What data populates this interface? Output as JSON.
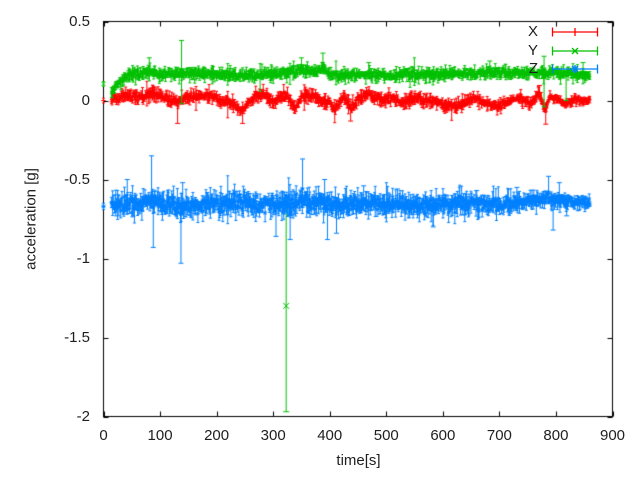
{
  "chart_data": {
    "type": "scatter",
    "subtype": "errorbars",
    "title": "",
    "xlabel": "time[s]",
    "ylabel": "acceleration [g]",
    "xlim": [
      0,
      900
    ],
    "ylim": [
      -2,
      0.5
    ],
    "xticks": {
      "values": [
        0,
        100,
        200,
        300,
        400,
        500,
        600,
        700,
        800,
        900
      ],
      "labels": [
        "0",
        "100",
        "200",
        "300",
        "400",
        "500",
        "600",
        "700",
        "800",
        "900"
      ]
    },
    "yticks": {
      "values": [
        0.5,
        0,
        -0.5,
        -1,
        -1.5,
        -2
      ],
      "labels": [
        "0.5",
        "0",
        "-0.5",
        "-1",
        "-1.5",
        "-2"
      ]
    },
    "grid": false,
    "legend_position": "top-right",
    "background_color": "#ffffff",
    "border_color": "#000000",
    "text_color": "#1f1f1f",
    "t_start": 14,
    "t_end": 860,
    "t_step": 1.1,
    "seed": 20,
    "series": [
      {
        "label": "X",
        "color": "#ff0000",
        "marker": "plus",
        "noise_sigma": 0.012,
        "err_base": 0.02,
        "taper": [
          [
            0,
            1
          ],
          [
            650,
            1
          ],
          [
            860,
            0.75
          ]
        ],
        "centerline": [
          [
            0,
            0
          ],
          [
            14,
            0.01
          ],
          [
            30,
            0.02
          ],
          [
            45,
            0.035
          ],
          [
            62,
            0.02
          ],
          [
            80,
            0.045
          ],
          [
            95,
            0.04
          ],
          [
            110,
            0.015
          ],
          [
            126,
            -0.005
          ],
          [
            131,
            -0.01
          ],
          [
            145,
            0.02
          ],
          [
            165,
            0.03
          ],
          [
            185,
            0.03
          ],
          [
            205,
            0.005
          ],
          [
            228,
            -0.025
          ],
          [
            245,
            -0.065
          ],
          [
            256,
            -0.01
          ],
          [
            272,
            0.035
          ],
          [
            286,
            0.045
          ],
          [
            299,
            -0.015
          ],
          [
            312,
            0.02
          ],
          [
            324,
            0.03
          ],
          [
            338,
            -0.05
          ],
          [
            352,
            0.025
          ],
          [
            368,
            0.04
          ],
          [
            383,
            0
          ],
          [
            398,
            -0.01
          ],
          [
            410,
            -0.055
          ],
          [
            424,
            0.03
          ],
          [
            438,
            -0.05
          ],
          [
            455,
            0.02
          ],
          [
            472,
            0.04
          ],
          [
            490,
            0
          ],
          [
            510,
            0.015
          ],
          [
            530,
            -0.015
          ],
          [
            548,
            0.015
          ],
          [
            567,
            0
          ],
          [
            588,
            -0.005
          ],
          [
            607,
            -0.03
          ],
          [
            625,
            -0.04
          ],
          [
            643,
            0
          ],
          [
            660,
            0.015
          ],
          [
            678,
            -0.02
          ],
          [
            697,
            -0.04
          ],
          [
            716,
            -0.005
          ],
          [
            736,
            0.015
          ],
          [
            755,
            -0.025
          ],
          [
            770,
            0.055
          ],
          [
            780,
            -0.06
          ],
          [
            788,
            0.015
          ],
          [
            800,
            0.005
          ],
          [
            815,
            -0.015
          ],
          [
            832,
            0
          ],
          [
            860,
            -0.005
          ]
        ],
        "lead_point": {
          "t": 0,
          "y": 0,
          "err": 0.015
        },
        "spikes": [
          {
            "t": 131,
            "lo": -0.145
          },
          {
            "t": 246,
            "lo": -0.145
          },
          {
            "t": 437,
            "lo": -0.13
          },
          {
            "t": 771,
            "hi": 0.095
          },
          {
            "t": 782,
            "lo": -0.15
          }
        ],
        "outliers": []
      },
      {
        "label": "Y",
        "color": "#00c000",
        "marker": "times",
        "noise_sigma": 0.012,
        "err_base": 0.02,
        "taper": [
          [
            0,
            1
          ],
          [
            860,
            1
          ]
        ],
        "centerline": [
          [
            0,
            0.105
          ],
          [
            14,
            0.055
          ],
          [
            22,
            0.09
          ],
          [
            35,
            0.14
          ],
          [
            55,
            0.165
          ],
          [
            80,
            0.185
          ],
          [
            100,
            0.17
          ],
          [
            130,
            0.17
          ],
          [
            160,
            0.175
          ],
          [
            200,
            0.165
          ],
          [
            240,
            0.16
          ],
          [
            280,
            0.165
          ],
          [
            320,
            0.175
          ],
          [
            350,
            0.19
          ],
          [
            370,
            0.18
          ],
          [
            388,
            0.2
          ],
          [
            400,
            0.17
          ],
          [
            430,
            0.16
          ],
          [
            465,
            0.16
          ],
          [
            500,
            0.16
          ],
          [
            540,
            0.165
          ],
          [
            580,
            0.17
          ],
          [
            620,
            0.165
          ],
          [
            660,
            0.17
          ],
          [
            695,
            0.18
          ],
          [
            730,
            0.17
          ],
          [
            765,
            0.175
          ],
          [
            795,
            0.18
          ],
          [
            825,
            0.165
          ],
          [
            860,
            0.155
          ]
        ],
        "lead_point": {
          "t": 0,
          "y": 0.105,
          "err": 0.015
        },
        "spikes": [
          {
            "t": 81,
            "hi": 0.27
          },
          {
            "t": 138,
            "hi": 0.38,
            "lo": -0.02
          },
          {
            "t": 350,
            "hi": 0.27
          },
          {
            "t": 388,
            "hi": 0.3
          },
          {
            "t": 469,
            "hi": 0.24
          },
          {
            "t": 683,
            "hi": 0.25
          },
          {
            "t": 779,
            "hi": 0.28,
            "lo": -0.04
          },
          {
            "t": 818,
            "lo": 0
          },
          {
            "t": 848,
            "hi": 0.24
          }
        ],
        "outliers": [
          {
            "t": 323,
            "y": -1.3,
            "lo": -1.97,
            "hi": -0.63
          }
        ]
      },
      {
        "label": "Z",
        "color": "#0080ff",
        "marker": "star",
        "noise_sigma": 0.022,
        "err_base": 0.038,
        "taper": [
          [
            0,
            1
          ],
          [
            300,
            1.08
          ],
          [
            650,
            1
          ],
          [
            780,
            0.72
          ],
          [
            860,
            0.6
          ]
        ],
        "centerline": [
          [
            0,
            -0.67
          ],
          [
            14,
            -0.665
          ],
          [
            40,
            -0.66
          ],
          [
            60,
            -0.655
          ],
          [
            80,
            -0.625
          ],
          [
            95,
            -0.645
          ],
          [
            115,
            -0.66
          ],
          [
            138,
            -0.675
          ],
          [
            160,
            -0.665
          ],
          [
            195,
            -0.655
          ],
          [
            230,
            -0.645
          ],
          [
            265,
            -0.66
          ],
          [
            300,
            -0.655
          ],
          [
            330,
            -0.665
          ],
          [
            352,
            -0.625
          ],
          [
            370,
            -0.655
          ],
          [
            391,
            -0.64
          ],
          [
            420,
            -0.66
          ],
          [
            455,
            -0.66
          ],
          [
            490,
            -0.655
          ],
          [
            525,
            -0.65
          ],
          [
            560,
            -0.665
          ],
          [
            600,
            -0.66
          ],
          [
            640,
            -0.655
          ],
          [
            680,
            -0.65
          ],
          [
            720,
            -0.65
          ],
          [
            755,
            -0.635
          ],
          [
            785,
            -0.625
          ],
          [
            815,
            -0.64
          ],
          [
            860,
            -0.65
          ]
        ],
        "lead_point": {
          "t": 0,
          "y": -0.67,
          "err": 0.02
        },
        "spikes": [
          {
            "t": 42,
            "hi": -0.5
          },
          {
            "t": 85,
            "y": -0.6,
            "hi": -0.35
          },
          {
            "t": 88,
            "lo": -0.93
          },
          {
            "t": 137,
            "y": -0.72,
            "lo": -1.03
          },
          {
            "t": 140,
            "hi": -0.52
          },
          {
            "t": 305,
            "lo": -0.86
          },
          {
            "t": 330,
            "lo": -0.88
          },
          {
            "t": 352,
            "y": -0.56,
            "hi": -0.37
          },
          {
            "t": 391,
            "hi": -0.5
          },
          {
            "t": 396,
            "lo": -0.88
          },
          {
            "t": 412,
            "lo": -0.84
          },
          {
            "t": 460,
            "hi": -0.54
          },
          {
            "t": 520,
            "hi": -0.56
          },
          {
            "t": 583,
            "lo": -0.8
          },
          {
            "t": 660,
            "hi": -0.57
          },
          {
            "t": 731,
            "hi": -0.55
          },
          {
            "t": 787,
            "y": -0.58,
            "hi": -0.48
          },
          {
            "t": 795,
            "lo": -0.82
          },
          {
            "t": 806,
            "hi": -0.52
          },
          {
            "t": 819,
            "lo": -0.73
          }
        ],
        "outliers": []
      }
    ]
  }
}
